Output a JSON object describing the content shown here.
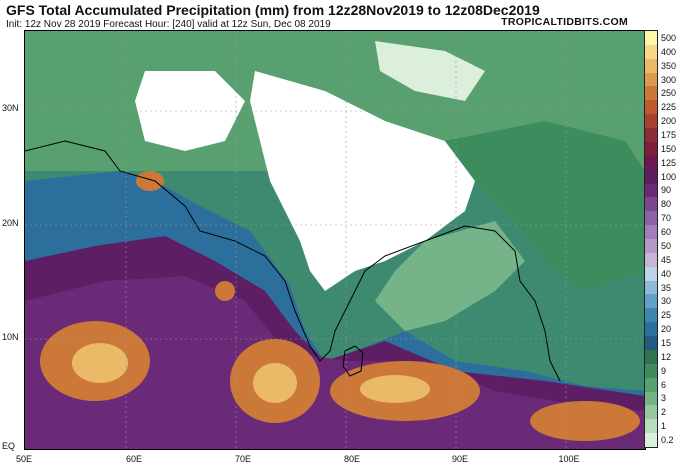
{
  "header": {
    "title": "GFS Total Accumulated Precipitation (mm) from 12z28Nov2019 to 12z08Dec2019",
    "subtitle": "Init: 12z Nov 28 2019   Forecast Hour: [240]   valid at 12z Sun, Dec 08 2019",
    "source": "TROPICALTIDBITS.COM"
  },
  "map": {
    "lon_labels": [
      "50E",
      "60E",
      "70E",
      "80E",
      "90E",
      "100E"
    ],
    "lat_labels": [
      "30N",
      "20N",
      "10N",
      "EQ"
    ],
    "regions": [
      "Arabian Sea",
      "Indian subcontinent",
      "Bay of Bengal",
      "Sri Lanka",
      "Southeast Asia",
      "Tibetan Plateau"
    ]
  },
  "colorbar": {
    "labels": [
      "500",
      "400",
      "350",
      "300",
      "250",
      "225",
      "200",
      "175",
      "150",
      "125",
      "100",
      "90",
      "80",
      "70",
      "60",
      "50",
      "45",
      "40",
      "35",
      "30",
      "25",
      "20",
      "15",
      "12",
      "9",
      "6",
      "3",
      "2",
      "1",
      "0.2"
    ],
    "colors": [
      "#fff6a8",
      "#f6d888",
      "#ebba68",
      "#dc9a4c",
      "#cc7838",
      "#bd5a2e",
      "#a94030",
      "#8e2c36",
      "#7e1e3c",
      "#6e1850",
      "#5e1e64",
      "#6a2a78",
      "#7c4690",
      "#8e60a4",
      "#a37eb8",
      "#b59ac6",
      "#c8b4d4",
      "#bcd4e8",
      "#8ebcd8",
      "#62a2c6",
      "#3a88b2",
      "#2c6f9c",
      "#245a80",
      "#2e7452",
      "#3c8c5e",
      "#58a070",
      "#74b488",
      "#96c8a0",
      "#b8dcbc",
      "#dcefdd"
    ]
  }
}
